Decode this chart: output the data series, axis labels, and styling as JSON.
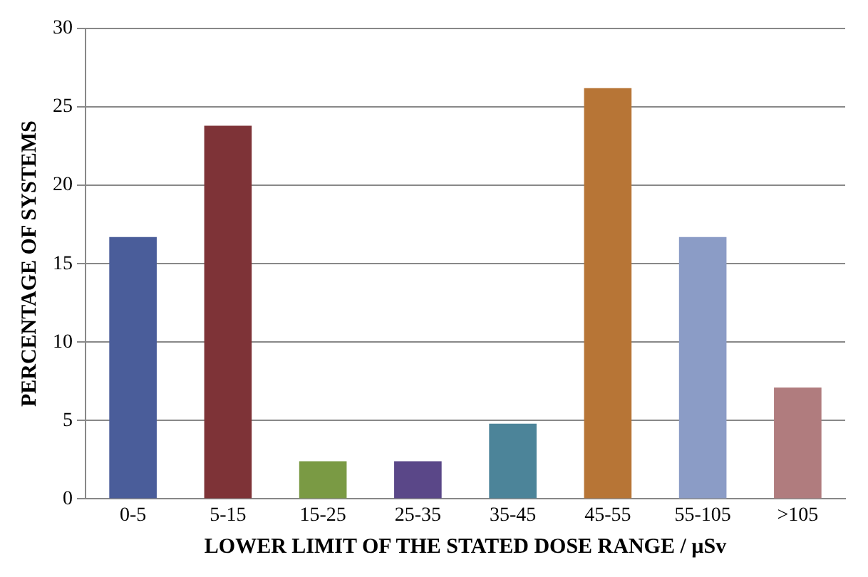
{
  "chart_data": {
    "type": "bar",
    "xlabel": "LOWER LIMIT OF THE STATED DOSE RANGE / µSv",
    "ylabel": "PERCENTAGE OF SYSTEMS",
    "categories": [
      "0-5",
      "5-15",
      "15-25",
      "25-35",
      "35-45",
      "45-55",
      "55-105",
      ">105"
    ],
    "values": [
      16.7,
      23.8,
      2.4,
      2.4,
      4.8,
      26.2,
      16.7,
      7.1
    ],
    "colors": [
      "#4a5d9a",
      "#7e3337",
      "#7a9a44",
      "#5a4788",
      "#4c8499",
      "#b77536",
      "#8b9cc6",
      "#b07c7e"
    ],
    "ylim": [
      0,
      30
    ],
    "yticks": [
      0,
      5,
      10,
      15,
      20,
      25,
      30
    ],
    "grid": "y",
    "legend": false
  }
}
